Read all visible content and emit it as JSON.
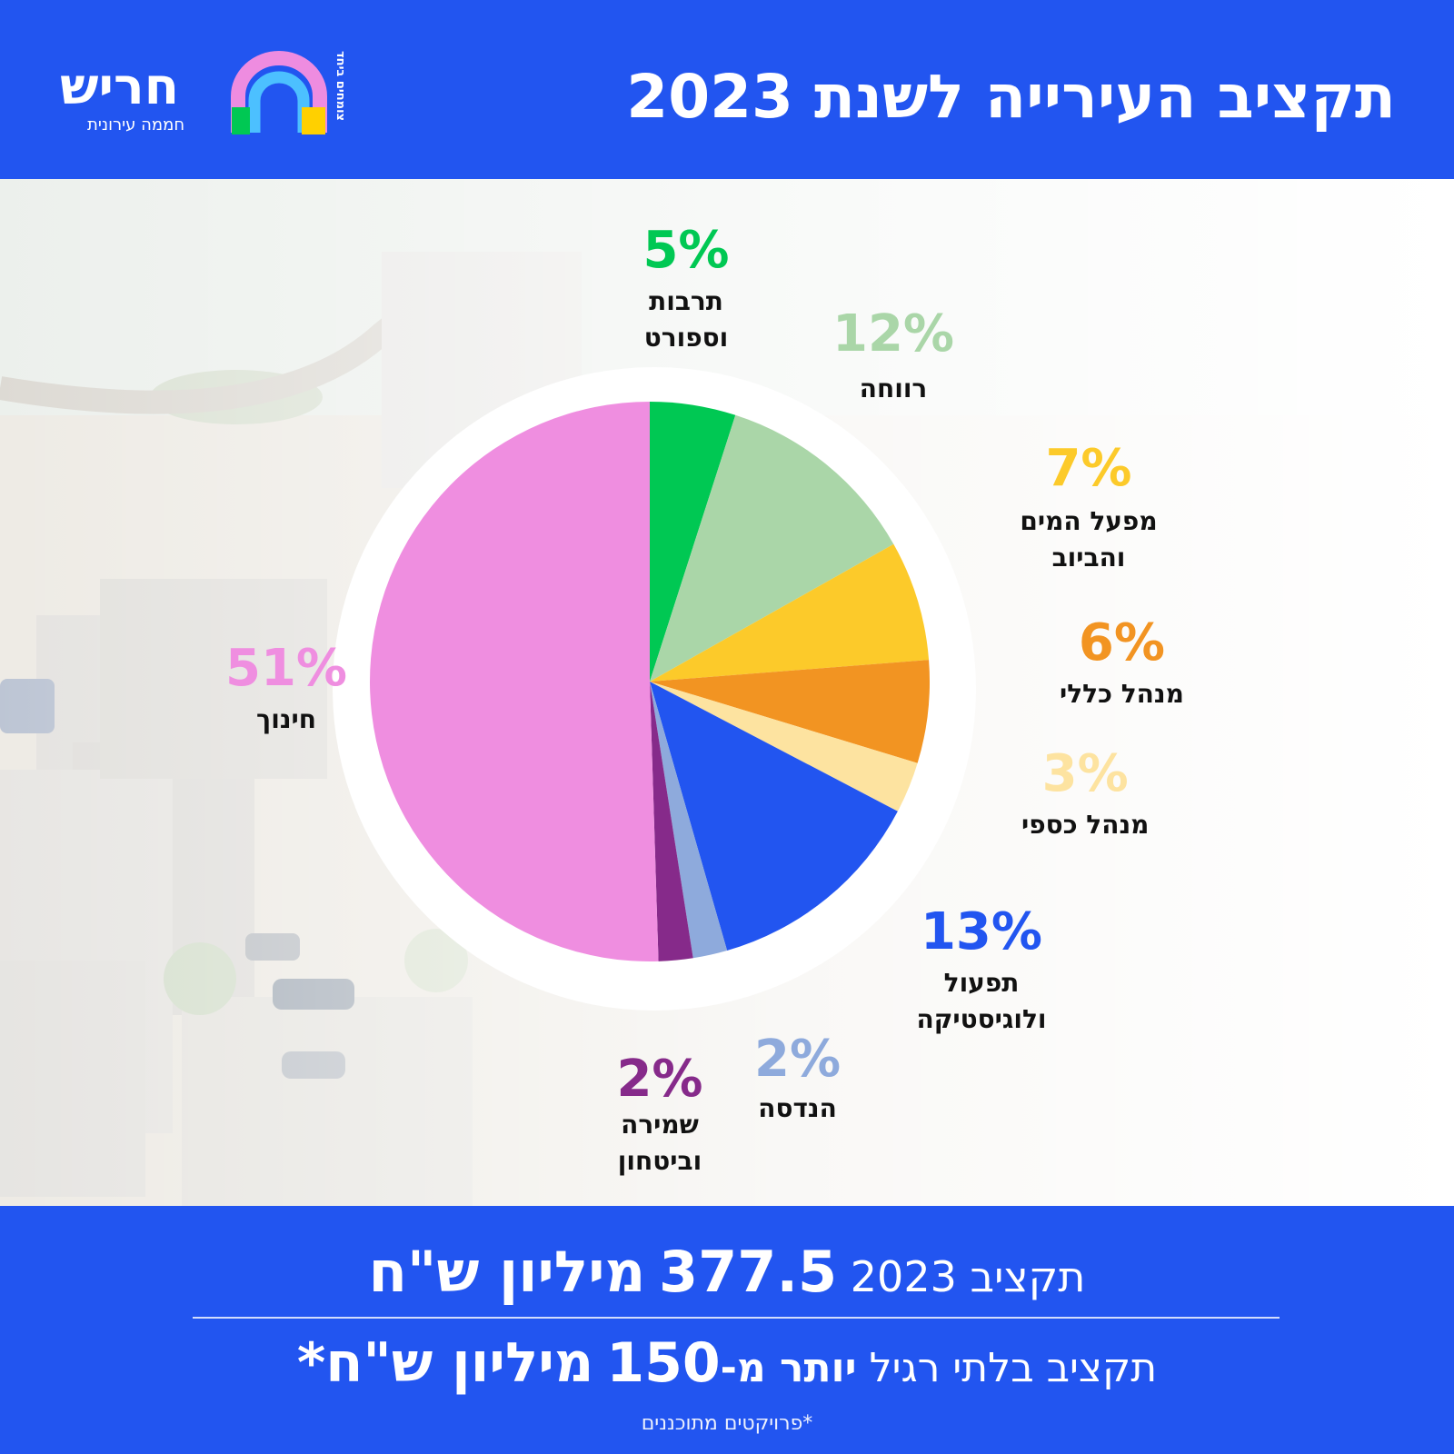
{
  "header": {
    "title": "תקציב העירייה לשנת 2023",
    "background_color": "#2255f0"
  },
  "logo": {
    "name": "חריש",
    "subtitle": "חממה עירונית",
    "slogan": "צומחים ביחד",
    "colors": [
      "#ee8ce0",
      "#4cc0ff",
      "#00c853",
      "#ffd000"
    ]
  },
  "chart_data": {
    "type": "pie",
    "title": "",
    "slices": [
      {
        "label": "תרבות וספורט",
        "value": 5,
        "value_label": "5%",
        "color": "#00c853"
      },
      {
        "label": "רווחה",
        "value": 12,
        "value_label": "12%",
        "color": "#aad6a8"
      },
      {
        "label": "מפעל המים והביוב",
        "value": 7,
        "value_label": "7%",
        "color": "#fcca2a"
      },
      {
        "label": "מנהל כללי",
        "value": 6,
        "value_label": "6%",
        "color": "#f29422"
      },
      {
        "label": "מנהל כספי",
        "value": 3,
        "value_label": "3%",
        "color": "#fde3a0"
      },
      {
        "label": "תפעול ולוגיסטיקה",
        "value": 13,
        "value_label": "13%",
        "color": "#2255f0"
      },
      {
        "label": "הנדסה",
        "value": 2,
        "value_label": "2%",
        "color": "#8eaadc"
      },
      {
        "label": "שמירה וביטחון",
        "value": 2,
        "value_label": "2%",
        "color": "#862a8a"
      },
      {
        "label": "חינוך",
        "value": 51,
        "value_label": "51%",
        "color": "#ef8ee0"
      }
    ]
  },
  "footer": {
    "budget_prefix": "תקציב 2023",
    "budget_amount": "377.5",
    "budget_unit": "מיליון ש\"ח",
    "extra_prefix": "תקציב בלתי רגיל",
    "extra_bold": "יותר מ-",
    "extra_amount": "150",
    "extra_unit": "מיליון ש\"ח*",
    "note": "*פרויקטים מתוכננים"
  }
}
